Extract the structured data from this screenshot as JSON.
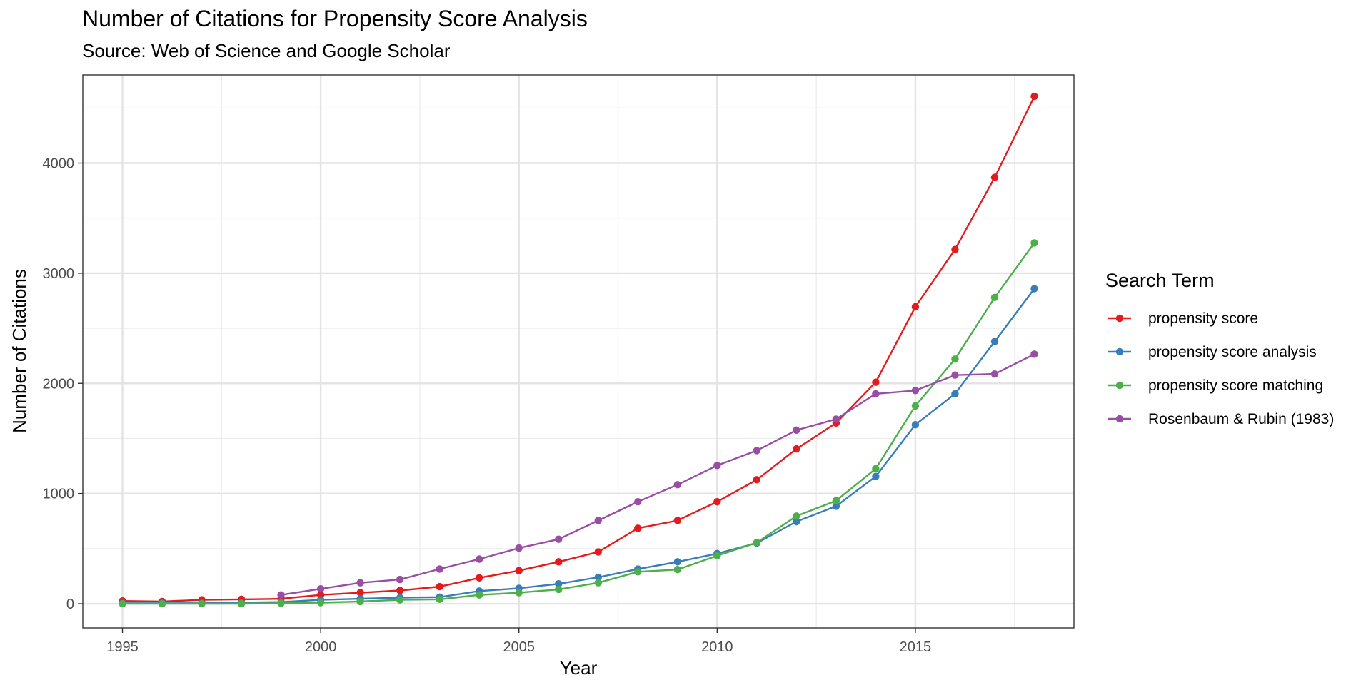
{
  "chart_data": {
    "type": "line",
    "title": "Number of Citations for Propensity Score Analysis",
    "subtitle": "Source: Web of Science and Google Scholar",
    "xlabel": "Year",
    "ylabel": "Number of Citations",
    "xlim": [
      1994,
      2019
    ],
    "ylim": [
      -220,
      4800
    ],
    "x_ticks": [
      1995,
      2000,
      2005,
      2010,
      2015
    ],
    "y_ticks": [
      0,
      1000,
      2000,
      3000,
      4000
    ],
    "grid": true,
    "legend": {
      "title": "Search Term",
      "position": "right"
    },
    "x": [
      1995,
      1996,
      1997,
      1998,
      1999,
      2000,
      2001,
      2002,
      2003,
      2004,
      2005,
      2006,
      2007,
      2008,
      2009,
      2010,
      2011,
      2012,
      2013,
      2014,
      2015,
      2016,
      2017,
      2018
    ],
    "series": [
      {
        "name": "propensity score",
        "color": "#E41A1C",
        "values": [
          25,
          20,
          35,
          40,
          45,
          80,
          100,
          120,
          155,
          235,
          300,
          380,
          470,
          685,
          755,
          925,
          1125,
          1405,
          1640,
          2010,
          2695,
          3215,
          3870,
          4605
        ]
      },
      {
        "name": "propensity score analysis",
        "color": "#377EB8",
        "values": [
          5,
          5,
          5,
          10,
          15,
          35,
          45,
          55,
          60,
          115,
          140,
          180,
          240,
          315,
          380,
          455,
          550,
          745,
          885,
          1155,
          1625,
          1905,
          2380,
          2860
        ]
      },
      {
        "name": "propensity score matching",
        "color": "#4DAF4A",
        "values": [
          0,
          0,
          0,
          0,
          5,
          10,
          20,
          35,
          40,
          80,
          100,
          130,
          190,
          290,
          310,
          435,
          555,
          795,
          935,
          1225,
          1795,
          2220,
          2780,
          3275
        ]
      },
      {
        "name": "Rosenbaum & Rubin (1983)",
        "color": "#984EA3",
        "values": [
          null,
          null,
          null,
          null,
          80,
          135,
          190,
          220,
          315,
          405,
          505,
          585,
          755,
          925,
          1080,
          1255,
          1390,
          1575,
          1675,
          1905,
          1935,
          2075,
          2085,
          2265
        ]
      }
    ]
  }
}
